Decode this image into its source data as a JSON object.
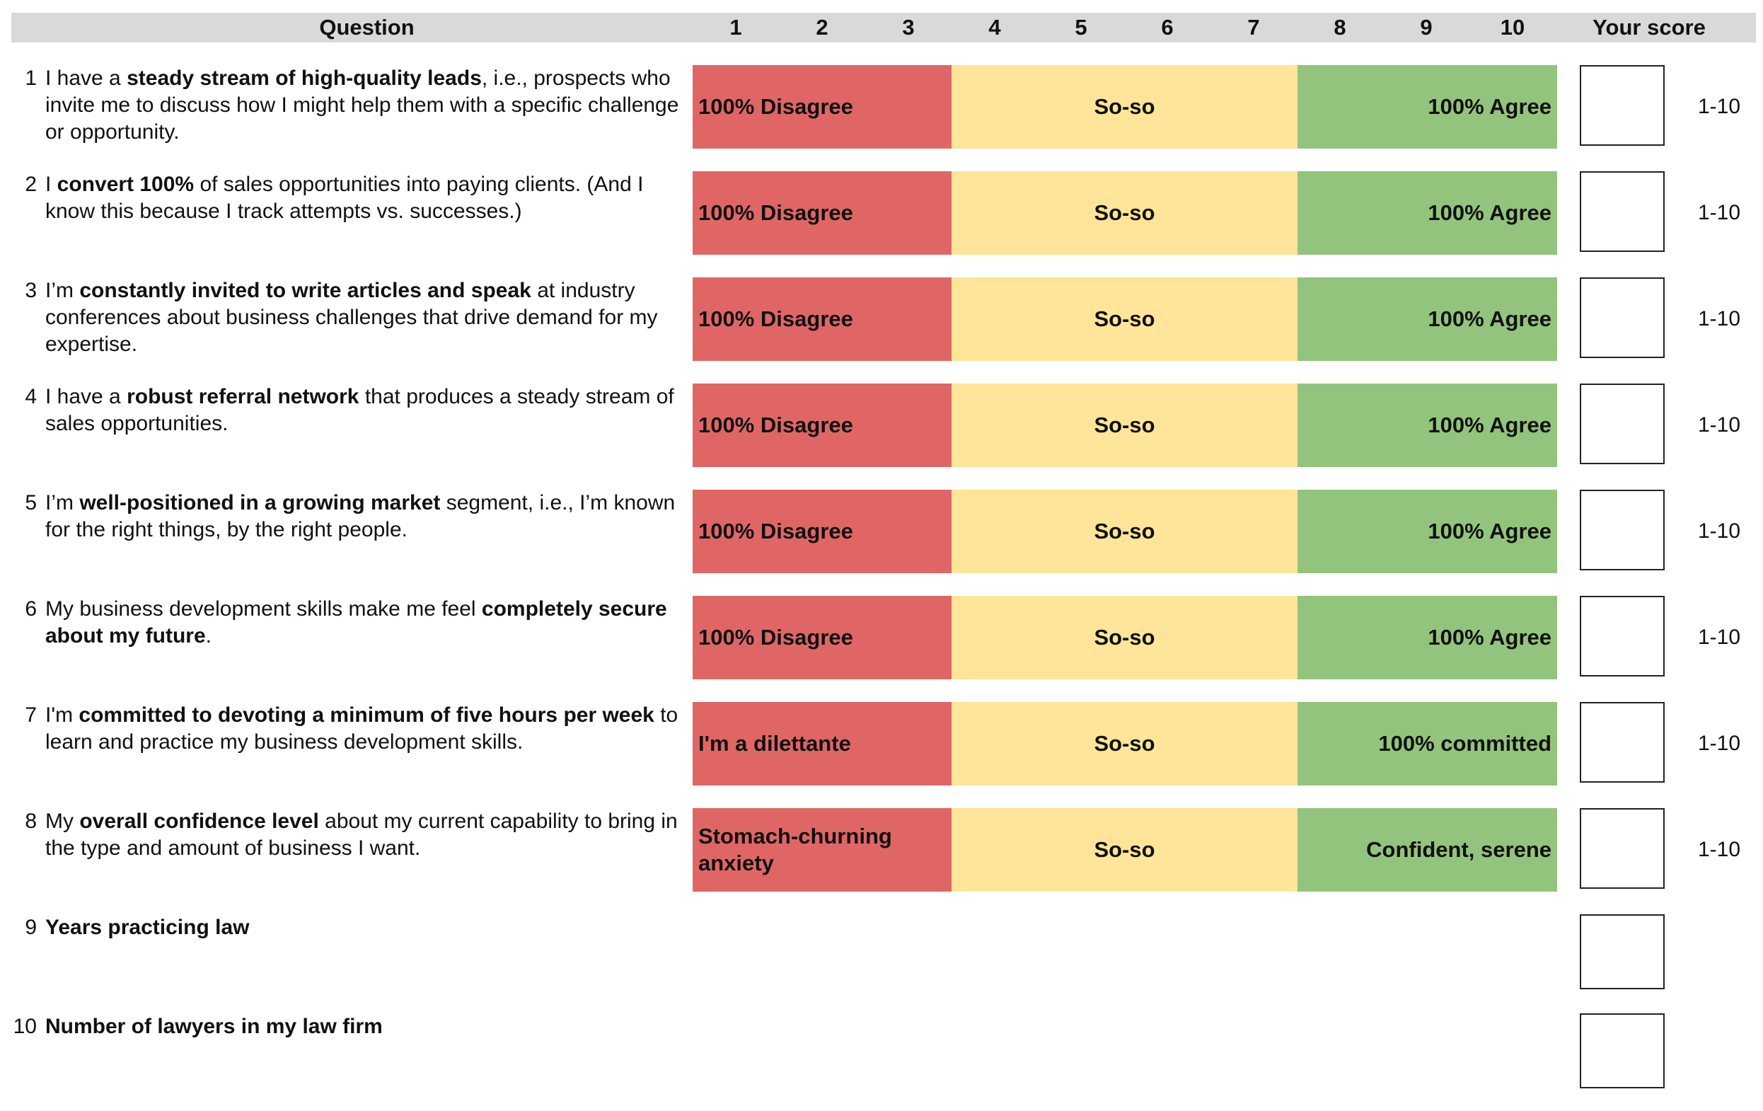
{
  "header": {
    "question": "Question",
    "numbers": [
      "1",
      "2",
      "3",
      "4",
      "5",
      "6",
      "7",
      "8",
      "9",
      "10"
    ],
    "your_score": "Your score"
  },
  "rows": [
    {
      "num": "1",
      "parts": [
        {
          "t": "I have a ",
          "b": false
        },
        {
          "t": "steady stream of high-quality leads",
          "b": true
        },
        {
          "t": ", i.e., prospects who invite me to discuss how I might help them with a specific challenge or opportunity.",
          "b": false
        }
      ],
      "low": "100% Disagree",
      "mid": "So-so",
      "high": "100% Agree",
      "range": "1-10"
    },
    {
      "num": "2",
      "parts": [
        {
          "t": "I ",
          "b": false
        },
        {
          "t": "convert 100%",
          "b": true
        },
        {
          "t": " of sales opportunities into paying clients. (And I know this because I track attempts vs. successes.)",
          "b": false
        }
      ],
      "low": "100% Disagree",
      "mid": "So-so",
      "high": "100% Agree",
      "range": "1-10"
    },
    {
      "num": "3",
      "parts": [
        {
          "t": "I’m ",
          "b": false
        },
        {
          "t": "constantly invited to write articles and speak",
          "b": true
        },
        {
          "t": " at industry conferences about business challenges that drive demand for my expertise.",
          "b": false
        }
      ],
      "low": "100% Disagree",
      "mid": "So-so",
      "high": "100% Agree",
      "range": "1-10"
    },
    {
      "num": "4",
      "parts": [
        {
          "t": "I have a ",
          "b": false
        },
        {
          "t": "robust referral network",
          "b": true
        },
        {
          "t": " that produces a steady stream of sales opportunities.",
          "b": false
        }
      ],
      "low": "100% Disagree",
      "mid": "So-so",
      "high": "100% Agree",
      "range": "1-10"
    },
    {
      "num": "5",
      "parts": [
        {
          "t": "I’m ",
          "b": false
        },
        {
          "t": "well-positioned in a growing market",
          "b": true
        },
        {
          "t": " segment, i.e., I’m known for the right things, by the right people.",
          "b": false
        }
      ],
      "low": "100% Disagree",
      "mid": "So-so",
      "high": "100% Agree",
      "range": "1-10"
    },
    {
      "num": "6",
      "parts": [
        {
          "t": "My business development skills make me feel ",
          "b": false
        },
        {
          "t": "completely secure about my future",
          "b": true
        },
        {
          "t": ".",
          "b": false
        }
      ],
      "low": "100% Disagree",
      "mid": "So-so",
      "high": "100% Agree",
      "range": "1-10"
    },
    {
      "num": "7",
      "parts": [
        {
          "t": "I'm ",
          "b": false
        },
        {
          "t": "committed to devoting a minimum of five hours per week",
          "b": true
        },
        {
          "t": " to learn and practice my business development skills.",
          "b": false
        }
      ],
      "low": "I'm a dilettante",
      "mid": "So-so",
      "high": "100% committed",
      "range": "1-10"
    },
    {
      "num": "8",
      "parts": [
        {
          "t": "My ",
          "b": false
        },
        {
          "t": "overall confidence level",
          "b": true
        },
        {
          "t": " about my current capability to bring in the type and amount of business I want.",
          "b": false
        }
      ],
      "low": "Stomach-churning anxiety",
      "mid": "So-so",
      "high": "Confident, serene",
      "range": "1-10"
    },
    {
      "num": "9",
      "parts": [
        {
          "t": "Years practicing law",
          "b": true
        }
      ]
    },
    {
      "num": "10",
      "parts": [
        {
          "t": "Number of lawyers in my law firm",
          "b": true
        }
      ]
    }
  ]
}
